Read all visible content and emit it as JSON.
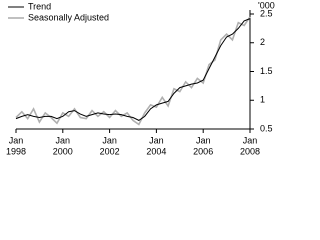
{
  "chart_data": {
    "type": "line",
    "y_unit": "'000",
    "x": [
      1998,
      1998.25,
      1998.5,
      1998.75,
      1999,
      1999.25,
      1999.5,
      1999.75,
      2000,
      2000.25,
      2000.5,
      2000.75,
      2001,
      2001.25,
      2001.5,
      2001.75,
      2002,
      2002.25,
      2002.5,
      2002.75,
      2003,
      2003.25,
      2003.5,
      2003.75,
      2004,
      2004.25,
      2004.5,
      2004.75,
      2005,
      2005.25,
      2005.5,
      2005.75,
      2006,
      2006.25,
      2006.5,
      2006.75,
      2007,
      2007.25,
      2007.5,
      2007.75,
      2008
    ],
    "series": [
      {
        "name": "Trend",
        "color": "#000000",
        "values": [
          0.68,
          0.72,
          0.75,
          0.72,
          0.7,
          0.72,
          0.72,
          0.68,
          0.72,
          0.8,
          0.82,
          0.76,
          0.72,
          0.75,
          0.78,
          0.76,
          0.75,
          0.76,
          0.75,
          0.72,
          0.7,
          0.65,
          0.72,
          0.85,
          0.92,
          0.95,
          0.98,
          1.12,
          1.22,
          1.25,
          1.28,
          1.3,
          1.35,
          1.55,
          1.75,
          1.95,
          2.1,
          2.15,
          2.25,
          2.38,
          2.42
        ]
      },
      {
        "name": "Seasonally Adjusted",
        "color": "#b0b0b0",
        "values": [
          0.7,
          0.8,
          0.68,
          0.85,
          0.62,
          0.78,
          0.7,
          0.6,
          0.78,
          0.72,
          0.85,
          0.7,
          0.68,
          0.82,
          0.72,
          0.8,
          0.7,
          0.82,
          0.72,
          0.78,
          0.65,
          0.58,
          0.78,
          0.92,
          0.88,
          1.05,
          0.9,
          1.2,
          1.15,
          1.32,
          1.22,
          1.38,
          1.3,
          1.62,
          1.7,
          2.05,
          2.15,
          2.05,
          2.35,
          2.3,
          2.45
        ]
      }
    ],
    "xlim": [
      1998,
      2008
    ],
    "xticks": [
      {
        "value": 1998,
        "label": [
          "Jan",
          "1998"
        ]
      },
      {
        "value": 2000,
        "label": [
          "Jan",
          "2000"
        ]
      },
      {
        "value": 2002,
        "label": [
          "Jan",
          "2002"
        ]
      },
      {
        "value": 2004,
        "label": [
          "Jan",
          "2004"
        ]
      },
      {
        "value": 2006,
        "label": [
          "Jan",
          "2006"
        ]
      },
      {
        "value": 2008,
        "label": [
          "Jan",
          "2008"
        ]
      }
    ],
    "ylim": [
      0.5,
      2.5
    ],
    "yticks": [
      0.5,
      1.0,
      1.5,
      2.0,
      2.5
    ],
    "legend": "top-left"
  }
}
